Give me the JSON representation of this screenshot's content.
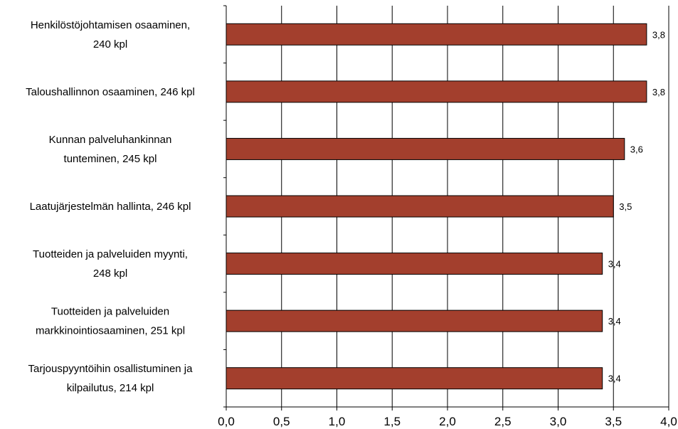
{
  "chart_data": {
    "type": "bar",
    "orientation": "horizontal",
    "categories": [
      [
        "Henkilöstöjohtamisen osaaminen,",
        "240 kpl"
      ],
      [
        "Taloushallinnon osaaminen, 246 kpl"
      ],
      [
        "Kunnan palveluhankinnan",
        "tunteminen, 245 kpl"
      ],
      [
        "Laatujärjestelmän hallinta, 246 kpl"
      ],
      [
        "Tuotteiden ja palveluiden myynti,",
        "248 kpl"
      ],
      [
        "Tuotteiden ja palveluiden",
        "markkinointiosaaminen, 251 kpl"
      ],
      [
        "Tarjouspyyntöihin osallistuminen ja",
        "kilpailutus, 214 kpl"
      ]
    ],
    "values": [
      3.8,
      3.8,
      3.6,
      3.5,
      3.4,
      3.4,
      3.4
    ],
    "data_labels": [
      "3,8",
      "3,8",
      "3,6",
      "3,5",
      "3,4",
      "3,4",
      "3,4"
    ],
    "xlim": [
      0,
      4.0
    ],
    "x_ticks": [
      0,
      0.5,
      1.0,
      1.5,
      2.0,
      2.5,
      3.0,
      3.5,
      4.0
    ],
    "x_tick_labels": [
      "0,0",
      "0,5",
      "1,0",
      "1,5",
      "2,0",
      "2,5",
      "3,0",
      "3,5",
      "4,0"
    ],
    "grid": "vertical",
    "title": "",
    "xlabel": "",
    "ylabel": "",
    "colors": {
      "bar": "#A33F2D",
      "bar_stroke": "#000000",
      "grid": "#000000"
    }
  }
}
